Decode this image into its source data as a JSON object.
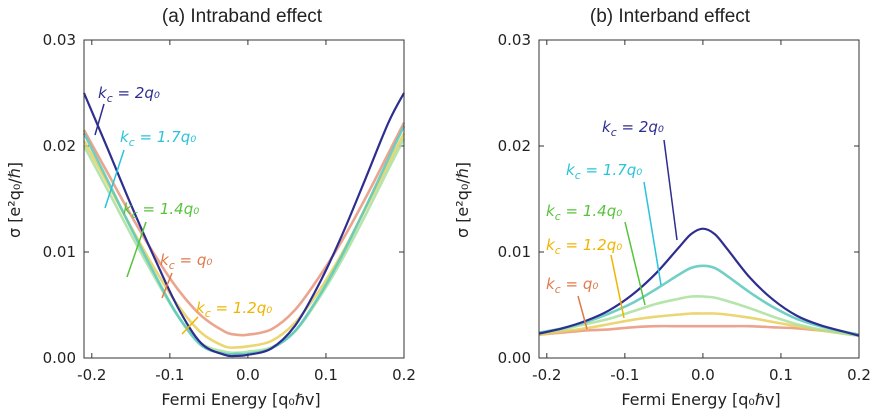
{
  "chart_data": [
    {
      "type": "line",
      "title": "(a)  Intraband effect",
      "xlabel": "Fermi Energy [q₀ℏv]",
      "ylabel": "σ  [e²q₀/ℏ]",
      "xlim": [
        -0.21,
        0.2
      ],
      "ylim": [
        0,
        0.03
      ],
      "xticks": [
        "-0.2",
        "-0.1",
        "0.0",
        "0.1",
        "0.2"
      ],
      "yticks": [
        "0.00",
        "0.01",
        "0.02",
        "0.03"
      ],
      "grid": false,
      "x": [
        -0.21,
        -0.18,
        -0.15,
        -0.12,
        -0.09,
        -0.06,
        -0.03,
        -0.015,
        0.0,
        0.03,
        0.06,
        0.09,
        0.12,
        0.15,
        0.18,
        0.2
      ],
      "series": [
        {
          "name": "k_c = q_0",
          "color": "#e8957a",
          "values": [
            0.0215,
            0.0175,
            0.0135,
            0.0098,
            0.0065,
            0.004,
            0.0025,
            0.0022,
            0.0022,
            0.0027,
            0.0045,
            0.0075,
            0.011,
            0.015,
            0.0193,
            0.0222
          ]
        },
        {
          "name": "k_c = 1.2q_0",
          "color": "#e8cf5a",
          "values": [
            0.0205,
            0.0165,
            0.0124,
            0.0085,
            0.005,
            0.0024,
            0.0011,
            0.001,
            0.0011,
            0.0016,
            0.0033,
            0.0062,
            0.0098,
            0.014,
            0.0183,
            0.0212
          ]
        },
        {
          "name": "k_c = 1.4q_0",
          "color": "#a8e09c",
          "values": [
            0.02,
            0.0159,
            0.0117,
            0.0077,
            0.004,
            0.0014,
            0.0006,
            0.0005,
            0.0006,
            0.001,
            0.0025,
            0.0055,
            0.0092,
            0.0134,
            0.0178,
            0.0207
          ]
        },
        {
          "name": "k_c = 1.7q_0",
          "color": "#58c8bc",
          "values": [
            0.0212,
            0.0168,
            0.0123,
            0.008,
            0.004,
            0.0012,
            0.0004,
            0.0004,
            0.0004,
            0.0009,
            0.0025,
            0.0057,
            0.0096,
            0.0141,
            0.0188,
            0.0219
          ]
        },
        {
          "name": "k_c = 2q_0",
          "color": "#2e2e90",
          "values": [
            0.025,
            0.0198,
            0.0145,
            0.0095,
            0.0048,
            0.0014,
            0.0003,
            0.0002,
            0.0003,
            0.0009,
            0.003,
            0.0068,
            0.0115,
            0.0168,
            0.0222,
            0.025
          ]
        }
      ],
      "annotations": [
        {
          "text": "k_c = 2q₀",
          "color": "#2e2e90"
        },
        {
          "text": "k_c = 1.7q₀",
          "color": "#29c4d8"
        },
        {
          "text": "k_c = 1.4q₀",
          "color": "#56c43a"
        },
        {
          "text": "k_c = q₀",
          "color": "#e07a4c"
        },
        {
          "text": "k_c = 1.2q₀",
          "color": "#f0b400"
        }
      ]
    },
    {
      "type": "line",
      "title": "(b)  Interband effect",
      "xlabel": "Fermi Energy [q₀ℏv]",
      "ylabel": "σ  [e²q₀/ℏ]",
      "xlim": [
        -0.21,
        0.2
      ],
      "ylim": [
        0,
        0.03
      ],
      "xticks": [
        "-0.2",
        "-0.1",
        "0.0",
        "0.1",
        "0.2"
      ],
      "yticks": [
        "0.00",
        "0.01",
        "0.02",
        "0.03"
      ],
      "grid": false,
      "x": [
        -0.21,
        -0.18,
        -0.15,
        -0.12,
        -0.09,
        -0.06,
        -0.03,
        -0.015,
        0.0,
        0.015,
        0.03,
        0.06,
        0.09,
        0.12,
        0.15,
        0.18,
        0.2
      ],
      "series": [
        {
          "name": "k_c = q_0",
          "color": "#e8957a",
          "values": [
            0.0022,
            0.0024,
            0.0026,
            0.0027,
            0.0029,
            0.003,
            0.003,
            0.003,
            0.003,
            0.003,
            0.003,
            0.003,
            0.0029,
            0.0028,
            0.0026,
            0.0024,
            0.0022
          ]
        },
        {
          "name": "k_c = 1.2q_0",
          "color": "#e8cf5a",
          "values": [
            0.0022,
            0.0025,
            0.0028,
            0.0032,
            0.0036,
            0.0039,
            0.0041,
            0.0042,
            0.0042,
            0.0042,
            0.0041,
            0.0038,
            0.0034,
            0.003,
            0.0026,
            0.0023,
            0.0021
          ]
        },
        {
          "name": "k_c = 1.4q_0",
          "color": "#a8e09c",
          "values": [
            0.0023,
            0.0027,
            0.0032,
            0.0037,
            0.0044,
            0.0051,
            0.0056,
            0.0058,
            0.0058,
            0.0057,
            0.0054,
            0.0047,
            0.0039,
            0.0032,
            0.0027,
            0.0023,
            0.0021
          ]
        },
        {
          "name": "k_c = 1.7q_0",
          "color": "#58c8bc",
          "values": [
            0.0024,
            0.0028,
            0.0034,
            0.0042,
            0.0052,
            0.0065,
            0.0079,
            0.0085,
            0.0087,
            0.0085,
            0.0078,
            0.0062,
            0.0048,
            0.0037,
            0.003,
            0.0025,
            0.0022
          ]
        },
        {
          "name": "k_c = 2q_0",
          "color": "#2e2e90",
          "values": [
            0.0023,
            0.0028,
            0.0035,
            0.0045,
            0.006,
            0.008,
            0.0105,
            0.0117,
            0.0122,
            0.0117,
            0.0104,
            0.0076,
            0.0055,
            0.004,
            0.0031,
            0.0025,
            0.0021
          ]
        }
      ],
      "annotations": [
        {
          "text": "k_c = 2q₀",
          "color": "#2e2e90"
        },
        {
          "text": "k_c = 1.7q₀",
          "color": "#29c4d8"
        },
        {
          "text": "k_c = 1.4q₀",
          "color": "#56c43a"
        },
        {
          "text": "k_c = 1.2q₀",
          "color": "#f0b400"
        },
        {
          "text": "k_c = q₀",
          "color": "#e07a4c"
        }
      ]
    }
  ]
}
